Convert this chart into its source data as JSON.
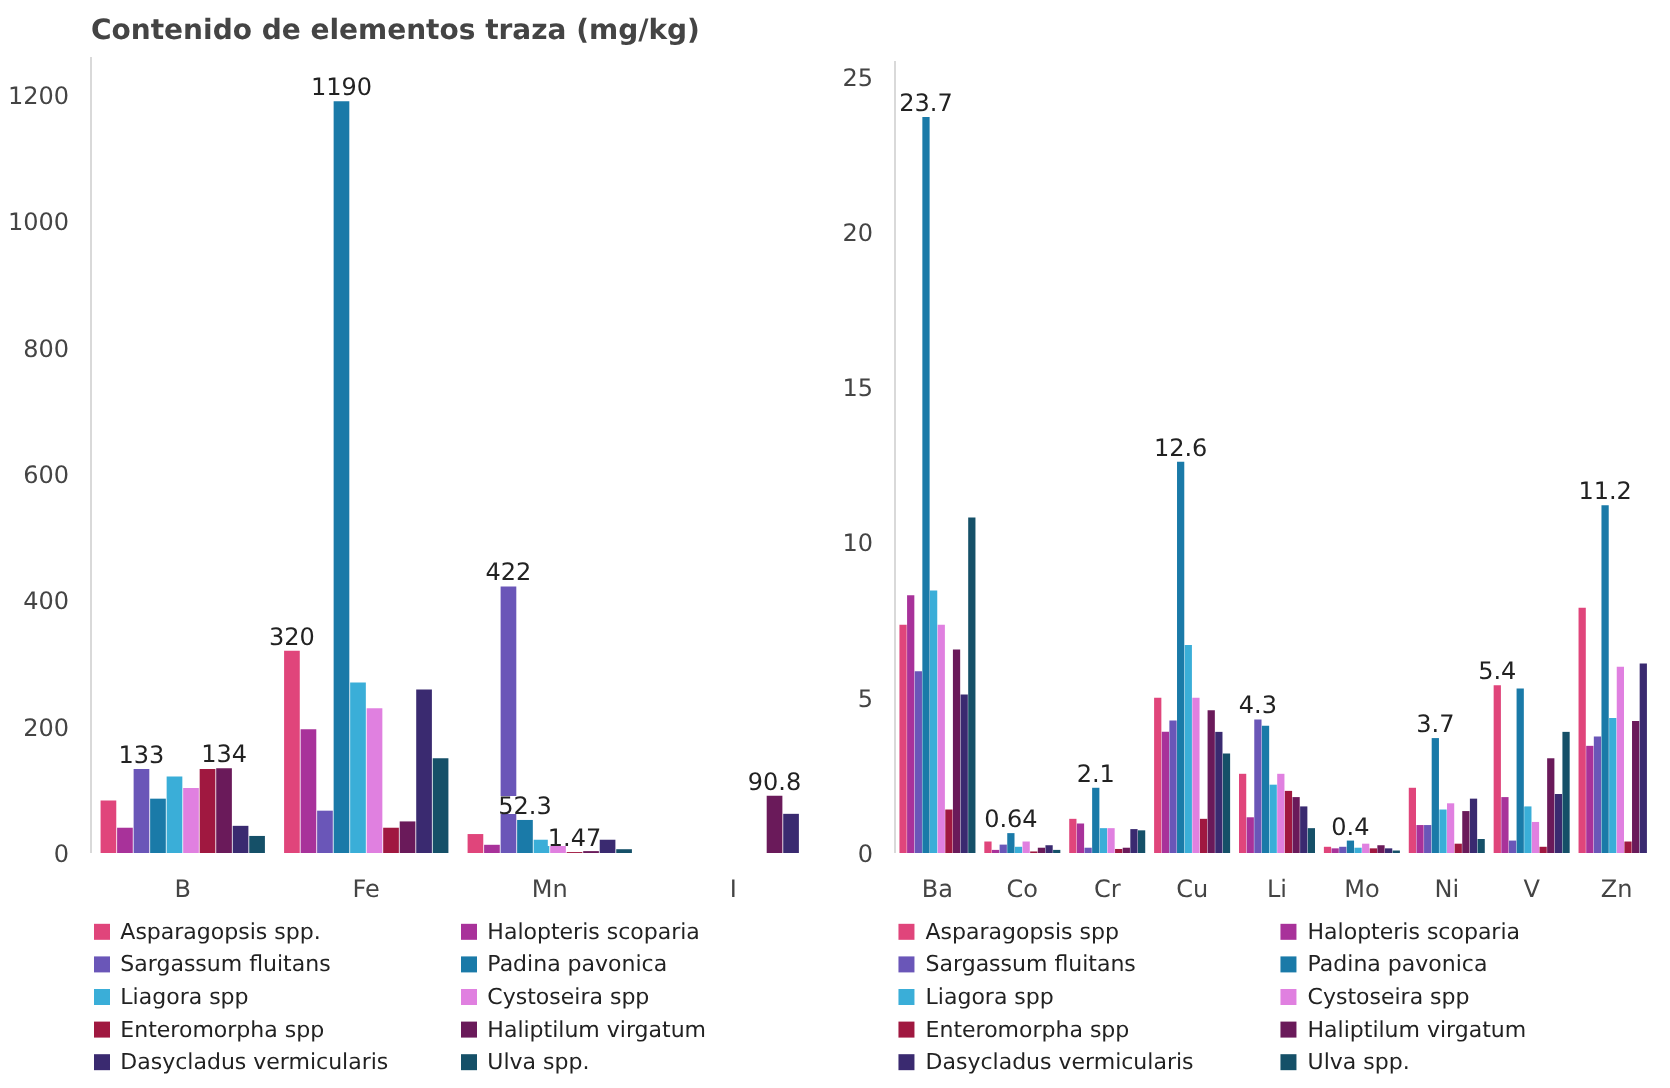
{
  "chart_data": [
    {
      "type": "bar",
      "title": "Contenido de elementos traza (mg/kg)",
      "categories": [
        "B",
        "Fe",
        "Mn",
        "I"
      ],
      "ylim": [
        0,
        1260
      ],
      "yticks": [
        0,
        200,
        400,
        600,
        800,
        1000,
        1200
      ],
      "grid": false,
      "legend": "bottom",
      "series": [
        {
          "name": "Asparagopsis spp.",
          "color": "#e0457b",
          "values": [
            83,
            320,
            30,
            null
          ],
          "value_labels": [
            null,
            "320",
            null,
            null
          ]
        },
        {
          "name": "Halopteris scoparia",
          "color": "#a8329a",
          "values": [
            40,
            196,
            13,
            null
          ]
        },
        {
          "name": "Sargassum fluitans",
          "color": "#6a56b8",
          "values": [
            133,
            67,
            422,
            null
          ],
          "value_labels": [
            "133",
            null,
            "422",
            null
          ]
        },
        {
          "name": "Padina pavonica",
          "color": "#1a7aa8",
          "values": [
            86,
            1190,
            52.3,
            null
          ],
          "value_labels": [
            null,
            "1190",
            "52.3",
            null
          ]
        },
        {
          "name": "Liagora spp",
          "color": "#3aaed8",
          "values": [
            121,
            270,
            21,
            null
          ]
        },
        {
          "name": "Cystoseira spp",
          "color": "#e080e0",
          "values": [
            103,
            229,
            15,
            null
          ]
        },
        {
          "name": "Enteromorpha spp",
          "color": "#a01840",
          "values": [
            133,
            40,
            1.47,
            null
          ],
          "value_labels": [
            null,
            null,
            "1.47",
            null
          ]
        },
        {
          "name": "Haliptilum virgatum",
          "color": "#6a1a5a",
          "values": [
            134,
            50,
            3,
            90.8
          ],
          "value_labels": [
            "134",
            null,
            null,
            "90.8"
          ]
        },
        {
          "name": "Dasycladus vermicularis",
          "color": "#3a2a70",
          "values": [
            43,
            259,
            21,
            62
          ]
        },
        {
          "name": "Ulva spp.",
          "color": "#155068",
          "values": [
            27,
            150,
            6,
            null
          ]
        }
      ]
    },
    {
      "type": "bar",
      "categories": [
        "Ba",
        "Co",
        "Cr",
        "Cu",
        "Li",
        "Mo",
        "Ni",
        "V",
        "Zn"
      ],
      "ylim": [
        0,
        25.5
      ],
      "yticks": [
        0,
        5,
        10,
        15,
        20,
        25
      ],
      "grid": false,
      "legend": "bottom",
      "series": [
        {
          "name": "Asparagopsis spp",
          "color": "#e0457b",
          "values": [
            7.35,
            0.37,
            1.1,
            5.0,
            2.55,
            0.2,
            2.1,
            5.4,
            7.9
          ],
          "value_labels": [
            null,
            null,
            null,
            null,
            null,
            null,
            null,
            "5.4",
            null
          ]
        },
        {
          "name": "Halopteris scoparia",
          "color": "#a8329a",
          "values": [
            8.3,
            0.1,
            0.95,
            3.9,
            1.15,
            0.15,
            0.9,
            1.8,
            3.45
          ]
        },
        {
          "name": "Sargassum fluitans",
          "color": "#6a56b8",
          "values": [
            5.85,
            0.27,
            0.17,
            4.27,
            4.3,
            0.2,
            0.9,
            0.4,
            3.75
          ],
          "value_labels": [
            null,
            null,
            null,
            null,
            "4.3",
            null,
            null,
            null,
            null
          ]
        },
        {
          "name": "Padina pavonica",
          "color": "#1a7aa8",
          "values": [
            23.7,
            0.64,
            2.1,
            12.6,
            4.1,
            0.4,
            3.7,
            5.3,
            11.2
          ],
          "value_labels": [
            "23.7",
            "0.64",
            "2.1",
            "12.6",
            null,
            "0.4",
            "3.7",
            null,
            "11.2"
          ]
        },
        {
          "name": "Liagora spp",
          "color": "#3aaed8",
          "values": [
            8.45,
            0.2,
            0.8,
            6.7,
            2.2,
            0.17,
            1.4,
            1.5,
            4.35
          ]
        },
        {
          "name": "Cystoseira spp",
          "color": "#e080e0",
          "values": [
            7.35,
            0.37,
            0.8,
            5.0,
            2.55,
            0.3,
            1.6,
            1.0,
            6.0
          ]
        },
        {
          "name": "Enteromorpha spp",
          "color": "#a01840",
          "values": [
            1.4,
            0.05,
            0.13,
            1.1,
            2.0,
            0.15,
            0.3,
            0.2,
            0.37
          ]
        },
        {
          "name": "Haliptilum virgatum",
          "color": "#6a1a5a",
          "values": [
            6.55,
            0.17,
            0.17,
            4.6,
            1.8,
            0.25,
            1.35,
            3.05,
            4.25
          ]
        },
        {
          "name": "Dasycladus vermicularis",
          "color": "#3a2a70",
          "values": [
            5.1,
            0.25,
            0.77,
            3.9,
            1.5,
            0.15,
            1.75,
            1.9,
            6.1
          ]
        },
        {
          "name": "Ulva spp.",
          "color": "#155068",
          "values": [
            10.8,
            0.1,
            0.73,
            3.2,
            0.8,
            0.08,
            0.45,
            3.9,
            null
          ]
        }
      ]
    }
  ]
}
